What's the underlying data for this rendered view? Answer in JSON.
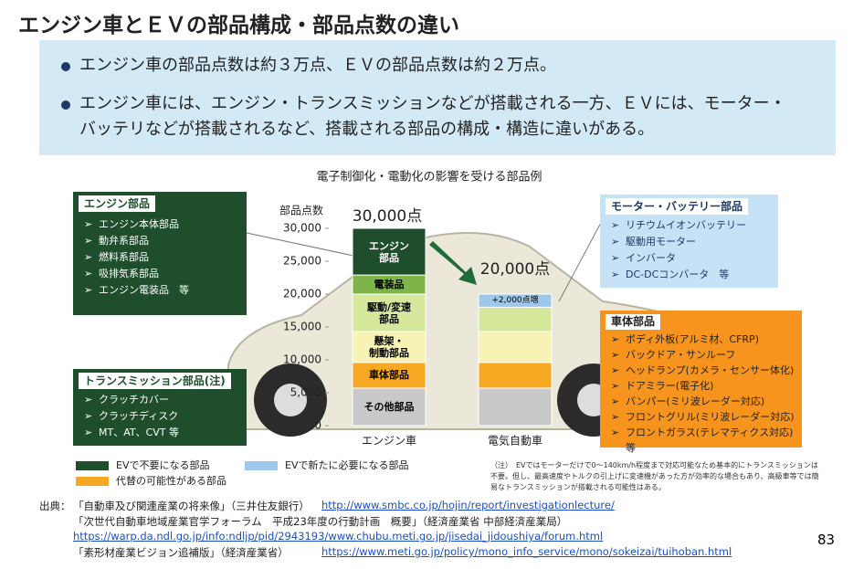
{
  "title": "エンジン車とＥＶの部品構成・部品点数の違い",
  "bullets": [
    "エンジン車の部品点数は約３万点、ＥＶの部品点数は約２万点。",
    "エンジン車には、エンジン・トランスミッションなどが搭載される一方、ＥＶには、モーター・バッテリなどが搭載されるなど、搭載される部品の構成・構造に違いがある。"
  ],
  "boxes": {
    "engine": {
      "title": "エンジン部品",
      "items": [
        "エンジン本体部品",
        "動弁系部品",
        "燃料系部品",
        "吸排気系部品",
        "エンジン電装品　等"
      ]
    },
    "transmission": {
      "title": "トランスミッション部品(注)",
      "items": [
        "クラッチカバー",
        "クラッチディスク",
        "MT、AT、CVT 等"
      ]
    },
    "motor": {
      "title": "モーター・バッテリー部品",
      "items": [
        "リチウムイオンバッテリー",
        "駆動用モーター",
        "インバータ",
        "DC-DCコンバータ　等"
      ]
    },
    "body": {
      "title": "車体部品",
      "items": [
        "ボディ外板(アルミ材、CFRP)",
        "バックドア・サンルーフ",
        "ヘッドランプ(カメラ・センサー体化)",
        "ドアミラー(電子化)",
        "バンパー(ミリ波レーダー対応)",
        "フロントグリル(ミリ波レーダー対応)",
        "フロントガラス(テレマティクス対応)等"
      ]
    }
  },
  "chart_data": {
    "type": "stacked_bar",
    "title": "電子制御化・電動化の影響を受ける部品例",
    "y_label": "部品点数",
    "categories": [
      "エンジン車",
      "電気自動車"
    ],
    "series": [
      {
        "name": "その他部品",
        "color": "#c9c9c9",
        "values": [
          5700,
          5700
        ]
      },
      {
        "name": "車体部品",
        "color": "#f7a823",
        "values": [
          3900,
          3900
        ]
      },
      {
        "name": "懸架・\n制動部品",
        "color": "#f6f3b4",
        "values": [
          4700,
          4700
        ]
      },
      {
        "name": "駆動/変速\n部品",
        "color": "#d5e89c",
        "values": [
          5700,
          3700
        ]
      },
      {
        "name": "+2,000点増",
        "color": "#9dc8ec",
        "values": [
          null,
          2000
        ]
      },
      {
        "name": "電装品",
        "color": "#7db54a",
        "values": [
          2900,
          null
        ]
      },
      {
        "name": "エンジン\n部品",
        "color": "#1f4e2c",
        "values": [
          7100,
          null
        ]
      }
    ],
    "totals": {
      "values": [
        30000,
        20000
      ],
      "value_labels": [
        "30,000点",
        "20,000点"
      ]
    },
    "ylim": [
      0,
      30000
    ],
    "yticks": [
      0,
      {
        "value": 5000,
        "label": "5,000"
      },
      {
        "value": 10000,
        "label": "10,000"
      },
      {
        "value": 15000,
        "label": "15,000"
      },
      {
        "value": 20000,
        "label": "20,000"
      },
      {
        "value": 25000,
        "label": "25,000"
      },
      {
        "value": 30000,
        "label": "30,000"
      }
    ],
    "legend": [
      {
        "label": "EVで不要になる部品",
        "color": "#1f4e2c"
      },
      {
        "label": "EVで新たに必要になる部品",
        "color": "#9dc8ec"
      },
      {
        "label": "代替の可能性がある部品",
        "color": "#f7a823"
      }
    ]
  },
  "note": "（注）　EVではモーターだけで0～140km/h程度まで対応可能なため基本的にトランスミッションは不要。但し、最高速度やトルクの引上げに変速機があった方が効率的な場合もあり、高級車等では簡易なトランスミッションが搭載される可能性はある。",
  "sources": {
    "label": "出典：",
    "items": [
      {
        "text": "「自動車及び関連産業の将来像」（三井住友銀行）",
        "url": "http://www.smbc.co.jp/hojin/report/investigationlecture/"
      },
      {
        "text": "「次世代自動車地域産業官学フォーラム　平成23年度の行動計画　概要」（経済産業省 中部経済産業局）",
        "url": "https://warp.da.ndl.go.jp/info:ndljp/pid/2943193/www.chubu.meti.go.jp/jisedai_jidoushiya/forum.html"
      },
      {
        "text": "「素形材産業ビジョン追補版」（経済産業省）",
        "url": "https://www.meti.go.jp/policy/mono_info_service/mono/sokeizai/tuihoban.html"
      }
    ]
  },
  "page_number": "83"
}
